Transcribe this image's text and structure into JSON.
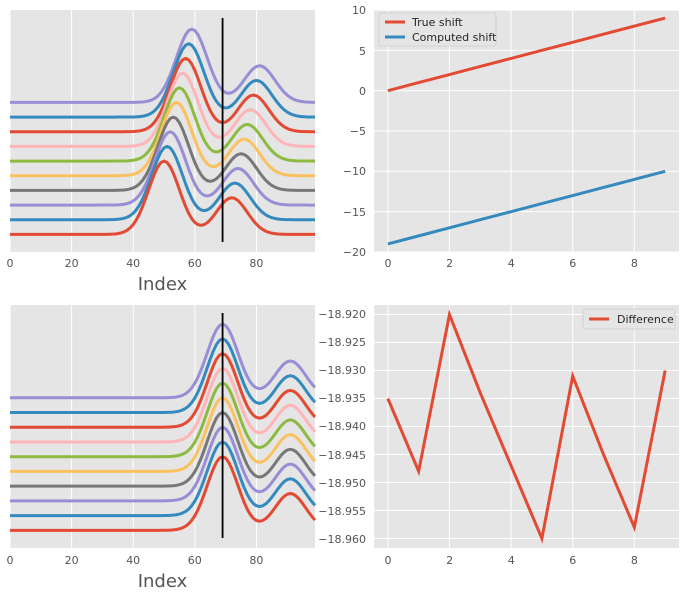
{
  "colors": {
    "cycle": [
      "#E24A33",
      "#348ABD",
      "#988ED5",
      "#777777",
      "#FBC15E",
      "#8EBA42",
      "#FFB5B8"
    ],
    "axes_bg": "#E5E5E5",
    "grid": "#FFFFFF",
    "marker_line": "#000000"
  },
  "chart_data": [
    {
      "id": "top-left",
      "type": "line",
      "title": "",
      "xlabel": "Index",
      "ylabel": "",
      "xlim": [
        0,
        99
      ],
      "xticks": [
        0,
        20,
        40,
        60,
        80
      ],
      "show_yticks": false,
      "signal": {
        "n_traces": 10,
        "length": 100,
        "offset_step": 1,
        "peaks_first": [
          {
            "center": 50,
            "amp": 5,
            "width": 5
          },
          {
            "center": 72,
            "amp": 2.5,
            "width": 5
          }
        ],
        "shift_per_trace": 1
      },
      "vline_x": 69
    },
    {
      "id": "top-right",
      "type": "line",
      "title": "",
      "xlabel": "",
      "ylabel": "",
      "x": [
        0,
        1,
        2,
        3,
        4,
        5,
        6,
        7,
        8,
        9
      ],
      "series": [
        {
          "name": "True shift",
          "values": [
            0,
            1,
            2,
            3,
            4,
            5,
            6,
            7,
            8,
            9
          ]
        },
        {
          "name": "Computed shift",
          "values": [
            -19,
            -18,
            -17,
            -16,
            -15,
            -14,
            -13,
            -12,
            -11,
            -10
          ]
        }
      ],
      "xticks": [
        0,
        2,
        4,
        6,
        8
      ],
      "yticks": [
        -20,
        -15,
        -10,
        -5,
        0,
        5,
        10
      ],
      "xlim": [
        -0.45,
        9.45
      ],
      "ylim": [
        -20,
        10
      ],
      "legend": "top-left"
    },
    {
      "id": "bottom-left",
      "type": "line",
      "title": "",
      "xlabel": "Index",
      "ylabel": "",
      "xlim": [
        0,
        99
      ],
      "xticks": [
        0,
        20,
        40,
        60,
        80
      ],
      "show_yticks": false,
      "signal": {
        "n_traces": 10,
        "length": 100,
        "offset_step": 1,
        "peaks_first": [
          {
            "center": 69,
            "amp": 5,
            "width": 5
          },
          {
            "center": 91,
            "amp": 2.5,
            "width": 5
          }
        ],
        "shift_per_trace": 0
      },
      "vline_x": 69
    },
    {
      "id": "bottom-right",
      "type": "line",
      "title": "",
      "xlabel": "",
      "ylabel": "",
      "x": [
        0,
        1,
        2,
        3,
        4,
        5,
        6,
        7,
        8,
        9
      ],
      "series": [
        {
          "name": "Difference",
          "values": [
            -18.935,
            -18.948,
            -18.92,
            -18.934,
            -18.947,
            -18.96,
            -18.931,
            -18.945,
            -18.958,
            -18.93
          ]
        }
      ],
      "xticks": [
        0,
        2,
        4,
        6,
        8
      ],
      "yticks": [
        -18.92,
        -18.925,
        -18.93,
        -18.935,
        -18.94,
        -18.945,
        -18.95,
        -18.955,
        -18.96
      ],
      "ytick_labels": [
        "−18.920",
        "−18.925",
        "−18.930",
        "−18.935",
        "−18.940",
        "−18.945",
        "−18.950",
        "−18.955",
        "−18.960"
      ],
      "xlim": [
        -0.45,
        9.45
      ],
      "ylim": [
        -18.9617,
        -18.9183
      ],
      "legend": "top-right"
    }
  ],
  "labels": {
    "tl_xticks": [
      "0",
      "20",
      "40",
      "60",
      "80"
    ],
    "tr_xticks": [
      "0",
      "2",
      "4",
      "6",
      "8"
    ],
    "tr_yticks": [
      "10",
      "5",
      "0",
      "−5",
      "−10",
      "−15",
      "−20"
    ],
    "bl_xticks": [
      "0",
      "20",
      "40",
      "60",
      "80"
    ],
    "br_xticks": [
      "0",
      "2",
      "4",
      "6",
      "8"
    ]
  }
}
